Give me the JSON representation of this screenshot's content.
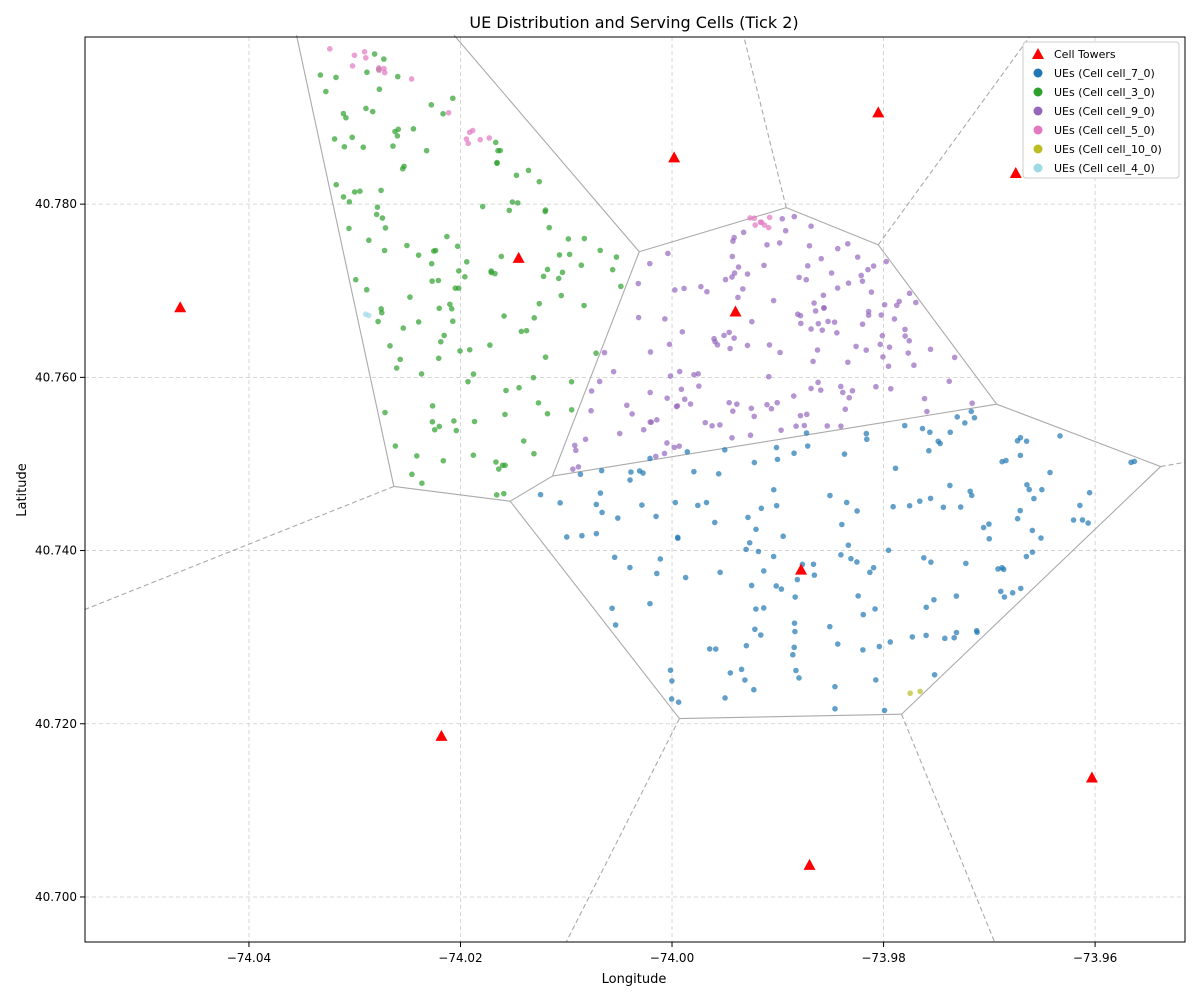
{
  "chart_data": {
    "type": "scatter",
    "title": "UE Distribution and Serving Cells (Tick 2)",
    "xlabel": "Longitude",
    "ylabel": "Latitude",
    "xlim": [
      -74.0555,
      -73.9515
    ],
    "ylim": [
      40.6948,
      40.7993
    ],
    "x_ticks": [
      -74.04,
      -74.02,
      -74.0,
      -73.98,
      -73.96
    ],
    "x_tick_labels": [
      "−74.04",
      "−74.02",
      "−74.00",
      "−73.98",
      "−73.96"
    ],
    "y_ticks": [
      40.7,
      40.72,
      40.74,
      40.76,
      40.78
    ],
    "y_tick_labels": [
      "40.700",
      "40.720",
      "40.740",
      "40.760",
      "40.780"
    ],
    "grid": true,
    "legend_position": "top-right",
    "legend": [
      {
        "label": "Cell Towers",
        "color": "#ff0000",
        "marker": "triangle"
      },
      {
        "label": "UEs (Cell cell_7_0)",
        "color": "#1f77b4",
        "marker": "circle"
      },
      {
        "label": "UEs (Cell cell_3_0)",
        "color": "#2ca02c",
        "marker": "circle"
      },
      {
        "label": "UEs (Cell cell_9_0)",
        "color": "#9467bd",
        "marker": "circle"
      },
      {
        "label": "UEs (Cell cell_5_0)",
        "color": "#e377c2",
        "marker": "circle"
      },
      {
        "label": "UEs (Cell cell_10_0)",
        "color": "#bcbd22",
        "marker": "circle"
      },
      {
        "label": "UEs (Cell cell_4_0)",
        "color": "#9edae5",
        "marker": "circle"
      }
    ],
    "towers": [
      [
        -74.0465,
        40.7681
      ],
      [
        -74.0145,
        40.7738
      ],
      [
        -73.9998,
        40.7854
      ],
      [
        -73.994,
        40.7676
      ],
      [
        -73.9805,
        40.7906
      ],
      [
        -73.9675,
        40.7836
      ],
      [
        -73.9878,
        40.7378
      ],
      [
        -74.0218,
        40.7186
      ],
      [
        -73.987,
        40.7037
      ],
      [
        -73.9603,
        40.7138
      ]
    ],
    "voronoi_edges": [
      [
        [
          -74.0355,
          40.7995
        ],
        [
          -74.0263,
          40.7474
        ]
      ],
      [
        [
          -74.0263,
          40.7474
        ],
        [
          -74.0153,
          40.7457
        ]
      ],
      [
        [
          -74.0153,
          40.7457
        ],
        [
          -74.0113,
          40.7486
        ]
      ],
      [
        [
          -74.0113,
          40.7486
        ],
        [
          -74.0031,
          40.7745
        ]
      ],
      [
        [
          -74.0031,
          40.7745
        ],
        [
          -74.0206,
          40.7995
        ]
      ],
      [
        [
          -74.0031,
          40.7745
        ],
        [
          -73.9892,
          40.7796
        ]
      ],
      [
        [
          -73.9892,
          40.7796
        ],
        [
          -73.9805,
          40.7753
        ]
      ],
      [
        [
          -73.9805,
          40.7753
        ],
        [
          -73.9693,
          40.7569
        ]
      ],
      [
        [
          -73.9693,
          40.7569
        ],
        [
          -73.9538,
          40.7497
        ]
      ],
      [
        [
          -73.9538,
          40.7497
        ],
        [
          -73.9783,
          40.7211
        ]
      ],
      [
        [
          -73.9783,
          40.7211
        ],
        [
          -73.9993,
          40.7206
        ]
      ],
      [
        [
          -73.9993,
          40.7206
        ],
        [
          -74.0153,
          40.7457
        ]
      ],
      [
        [
          -74.0113,
          40.7486
        ],
        [
          -73.9693,
          40.7569
        ]
      ]
    ],
    "voronoi_rays": [
      [
        [
          -74.0263,
          40.7474
        ],
        [
          -74.0555,
          40.7332
        ]
      ],
      [
        [
          -73.9892,
          40.7796
        ],
        [
          -73.9932,
          40.7993
        ]
      ],
      [
        [
          -73.9805,
          40.7753
        ],
        [
          -73.9662,
          40.7993
        ]
      ],
      [
        [
          -73.9538,
          40.7497
        ],
        [
          -73.9515,
          40.7502
        ]
      ],
      [
        [
          -73.9783,
          40.7211
        ],
        [
          -73.9695,
          40.6948
        ]
      ],
      [
        [
          -73.9993,
          40.7206
        ],
        [
          -74.01,
          40.6948
        ]
      ]
    ],
    "ue_series": [
      {
        "name": "UEs (Cell cell_7_0)",
        "color": "#1f77b4",
        "count": 180,
        "seed": 7,
        "regions": [
          [
            [
              -74.011,
              40.749
            ],
            [
              -73.97,
              40.757
            ],
            [
              -73.955,
              40.75
            ],
            [
              -73.9785,
              40.7215
            ],
            [
              -73.999,
              40.721
            ],
            [
              -74.0145,
              40.746
            ]
          ]
        ]
      },
      {
        "name": "UEs (Cell cell_3_0)",
        "color": "#2ca02c",
        "count": 150,
        "seed": 3,
        "regions": [
          [
            [
              -74.035,
              40.799
            ],
            [
              -74.0305,
              40.799
            ],
            [
              -74.02,
              40.792
            ],
            [
              -74.0035,
              40.774
            ],
            [
              -74.0115,
              40.749
            ],
            [
              -74.0155,
              40.7462
            ],
            [
              -74.0258,
              40.748
            ]
          ]
        ]
      },
      {
        "name": "UEs (Cell cell_9_0)",
        "color": "#9467bd",
        "count": 170,
        "seed": 9,
        "regions": [
          [
            [
              -74.003,
              40.774
            ],
            [
              -73.989,
              40.779
            ],
            [
              -73.9808,
              40.7755
            ],
            [
              -73.9698,
              40.7568
            ],
            [
              -74.0108,
              40.749
            ]
          ]
        ]
      },
      {
        "name": "UEs (Cell cell_5_0)",
        "color": "#e377c2",
        "count": 25,
        "seed": 5,
        "regions": [
          [
            [
              -74.0345,
              40.799
            ],
            [
              -74.029,
              40.799
            ],
            [
              -74.026,
              40.7945
            ],
            [
              -74.0305,
              40.796
            ]
          ],
          [
            [
              -74.027,
              40.7975
            ],
            [
              -74.016,
              40.788
            ],
            [
              -74.02,
              40.786
            ],
            [
              -74.024,
              40.793
            ]
          ],
          [
            [
              -73.993,
              40.7785
            ],
            [
              -73.99,
              40.7785
            ],
            [
              -73.9905,
              40.777
            ],
            [
              -73.9925,
              40.777
            ]
          ]
        ]
      },
      {
        "name": "UEs (Cell cell_10_0)",
        "color": "#bcbd22",
        "count": 2,
        "seed": 10,
        "regions": [
          [
            [
              -73.979,
              40.722
            ],
            [
              -73.9765,
              40.722
            ],
            [
              -73.9765,
              40.7238
            ],
            [
              -73.979,
              40.7238
            ]
          ]
        ]
      },
      {
        "name": "UEs (Cell cell_4_0)",
        "color": "#9edae5",
        "count": 2,
        "seed": 4,
        "regions": [
          [
            [
              -74.0305,
              40.765
            ],
            [
              -74.0285,
              40.765
            ],
            [
              -74.0285,
              40.7685
            ],
            [
              -74.0305,
              40.7685
            ]
          ]
        ]
      }
    ]
  }
}
